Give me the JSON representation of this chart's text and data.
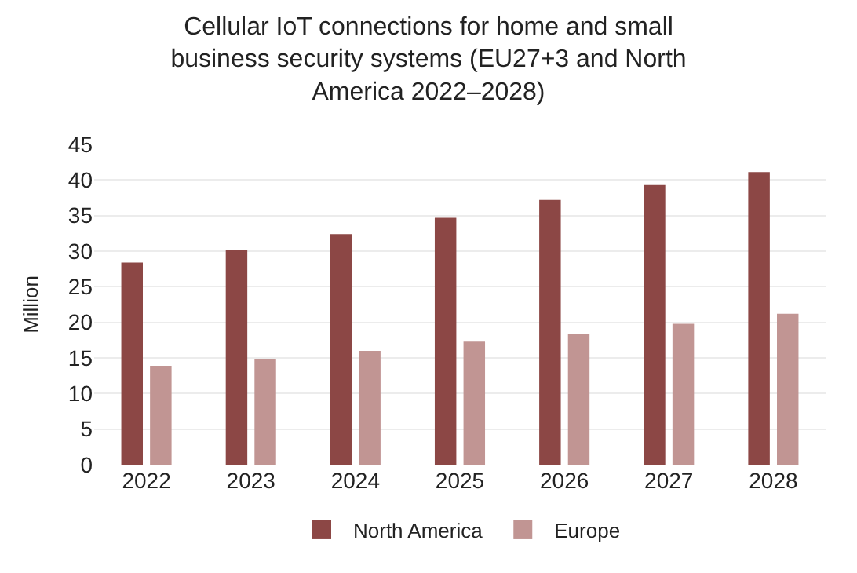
{
  "chart_data": {
    "type": "bar",
    "title": "Cellular IoT connections for home and small business security systems (EU27+3 and North America 2022–2028)",
    "ylabel": "Million",
    "categories": [
      "2022",
      "2023",
      "2024",
      "2025",
      "2026",
      "2027",
      "2028"
    ],
    "series": [
      {
        "name": "North America",
        "color": "#8c4745",
        "values": [
          28.4,
          30.1,
          32.4,
          34.7,
          37.2,
          39.3,
          41.1
        ]
      },
      {
        "name": "Europe",
        "color": "#c19593",
        "values": [
          13.9,
          14.9,
          16.0,
          17.3,
          18.4,
          19.8,
          21.2
        ]
      }
    ],
    "ylim": [
      0,
      45
    ],
    "yticks": [
      0,
      5,
      10,
      15,
      20,
      25,
      30,
      35,
      40,
      45
    ],
    "grid": "y",
    "legend": "bottom"
  }
}
